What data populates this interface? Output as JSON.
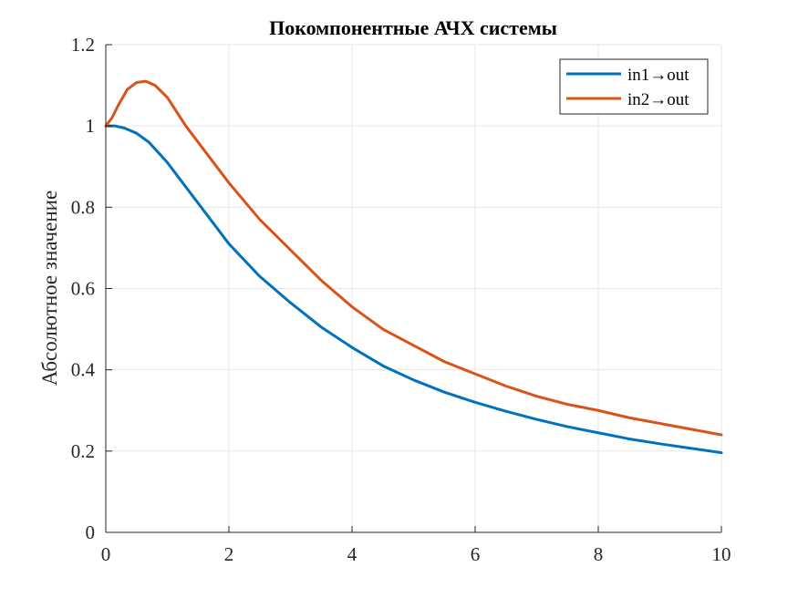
{
  "chart_data": {
    "type": "line",
    "title": "Покомпонентные АЧХ системы",
    "xlabel": "",
    "ylabel": "Абсолютное значение",
    "xlim": [
      0,
      10
    ],
    "ylim": [
      0,
      1.2
    ],
    "xticks": [
      "0",
      "2",
      "4",
      "6",
      "8",
      "10"
    ],
    "yticks": [
      "0",
      "0.2",
      "0.4",
      "0.6",
      "0.8",
      "1",
      "1.2"
    ],
    "xtick_values": [
      0,
      2,
      4,
      6,
      8,
      10
    ],
    "ytick_values": [
      0,
      0.2,
      0.4,
      0.6,
      0.8,
      1.0,
      1.2
    ],
    "grid": true,
    "legend_position": "top-right",
    "series": [
      {
        "name": "in1→out",
        "color": "#0072BD",
        "x": [
          0,
          0.15,
          0.3,
          0.5,
          0.7,
          1.0,
          1.3,
          1.6,
          2.0,
          2.5,
          3.0,
          3.5,
          4.0,
          4.5,
          5.0,
          5.5,
          6.0,
          6.5,
          7.0,
          7.5,
          8.0,
          8.5,
          9.0,
          9.5,
          10.0
        ],
        "values": [
          1.0,
          1.0,
          0.995,
          0.982,
          0.96,
          0.91,
          0.85,
          0.79,
          0.71,
          0.63,
          0.565,
          0.505,
          0.455,
          0.41,
          0.375,
          0.345,
          0.32,
          0.298,
          0.278,
          0.26,
          0.245,
          0.23,
          0.218,
          0.207,
          0.196
        ]
      },
      {
        "name": "in2→out",
        "color": "#D95319",
        "x": [
          0,
          0.1,
          0.2,
          0.35,
          0.5,
          0.65,
          0.8,
          1.0,
          1.3,
          1.6,
          2.0,
          2.5,
          3.0,
          3.5,
          4.0,
          4.5,
          5.0,
          5.5,
          6.0,
          6.5,
          7.0,
          7.5,
          8.0,
          8.5,
          9.0,
          9.5,
          10.0
        ],
        "values": [
          1.0,
          1.02,
          1.05,
          1.09,
          1.107,
          1.11,
          1.1,
          1.07,
          1.0,
          0.94,
          0.86,
          0.77,
          0.695,
          0.62,
          0.555,
          0.5,
          0.46,
          0.42,
          0.39,
          0.36,
          0.335,
          0.315,
          0.3,
          0.282,
          0.268,
          0.254,
          0.24
        ]
      }
    ]
  }
}
